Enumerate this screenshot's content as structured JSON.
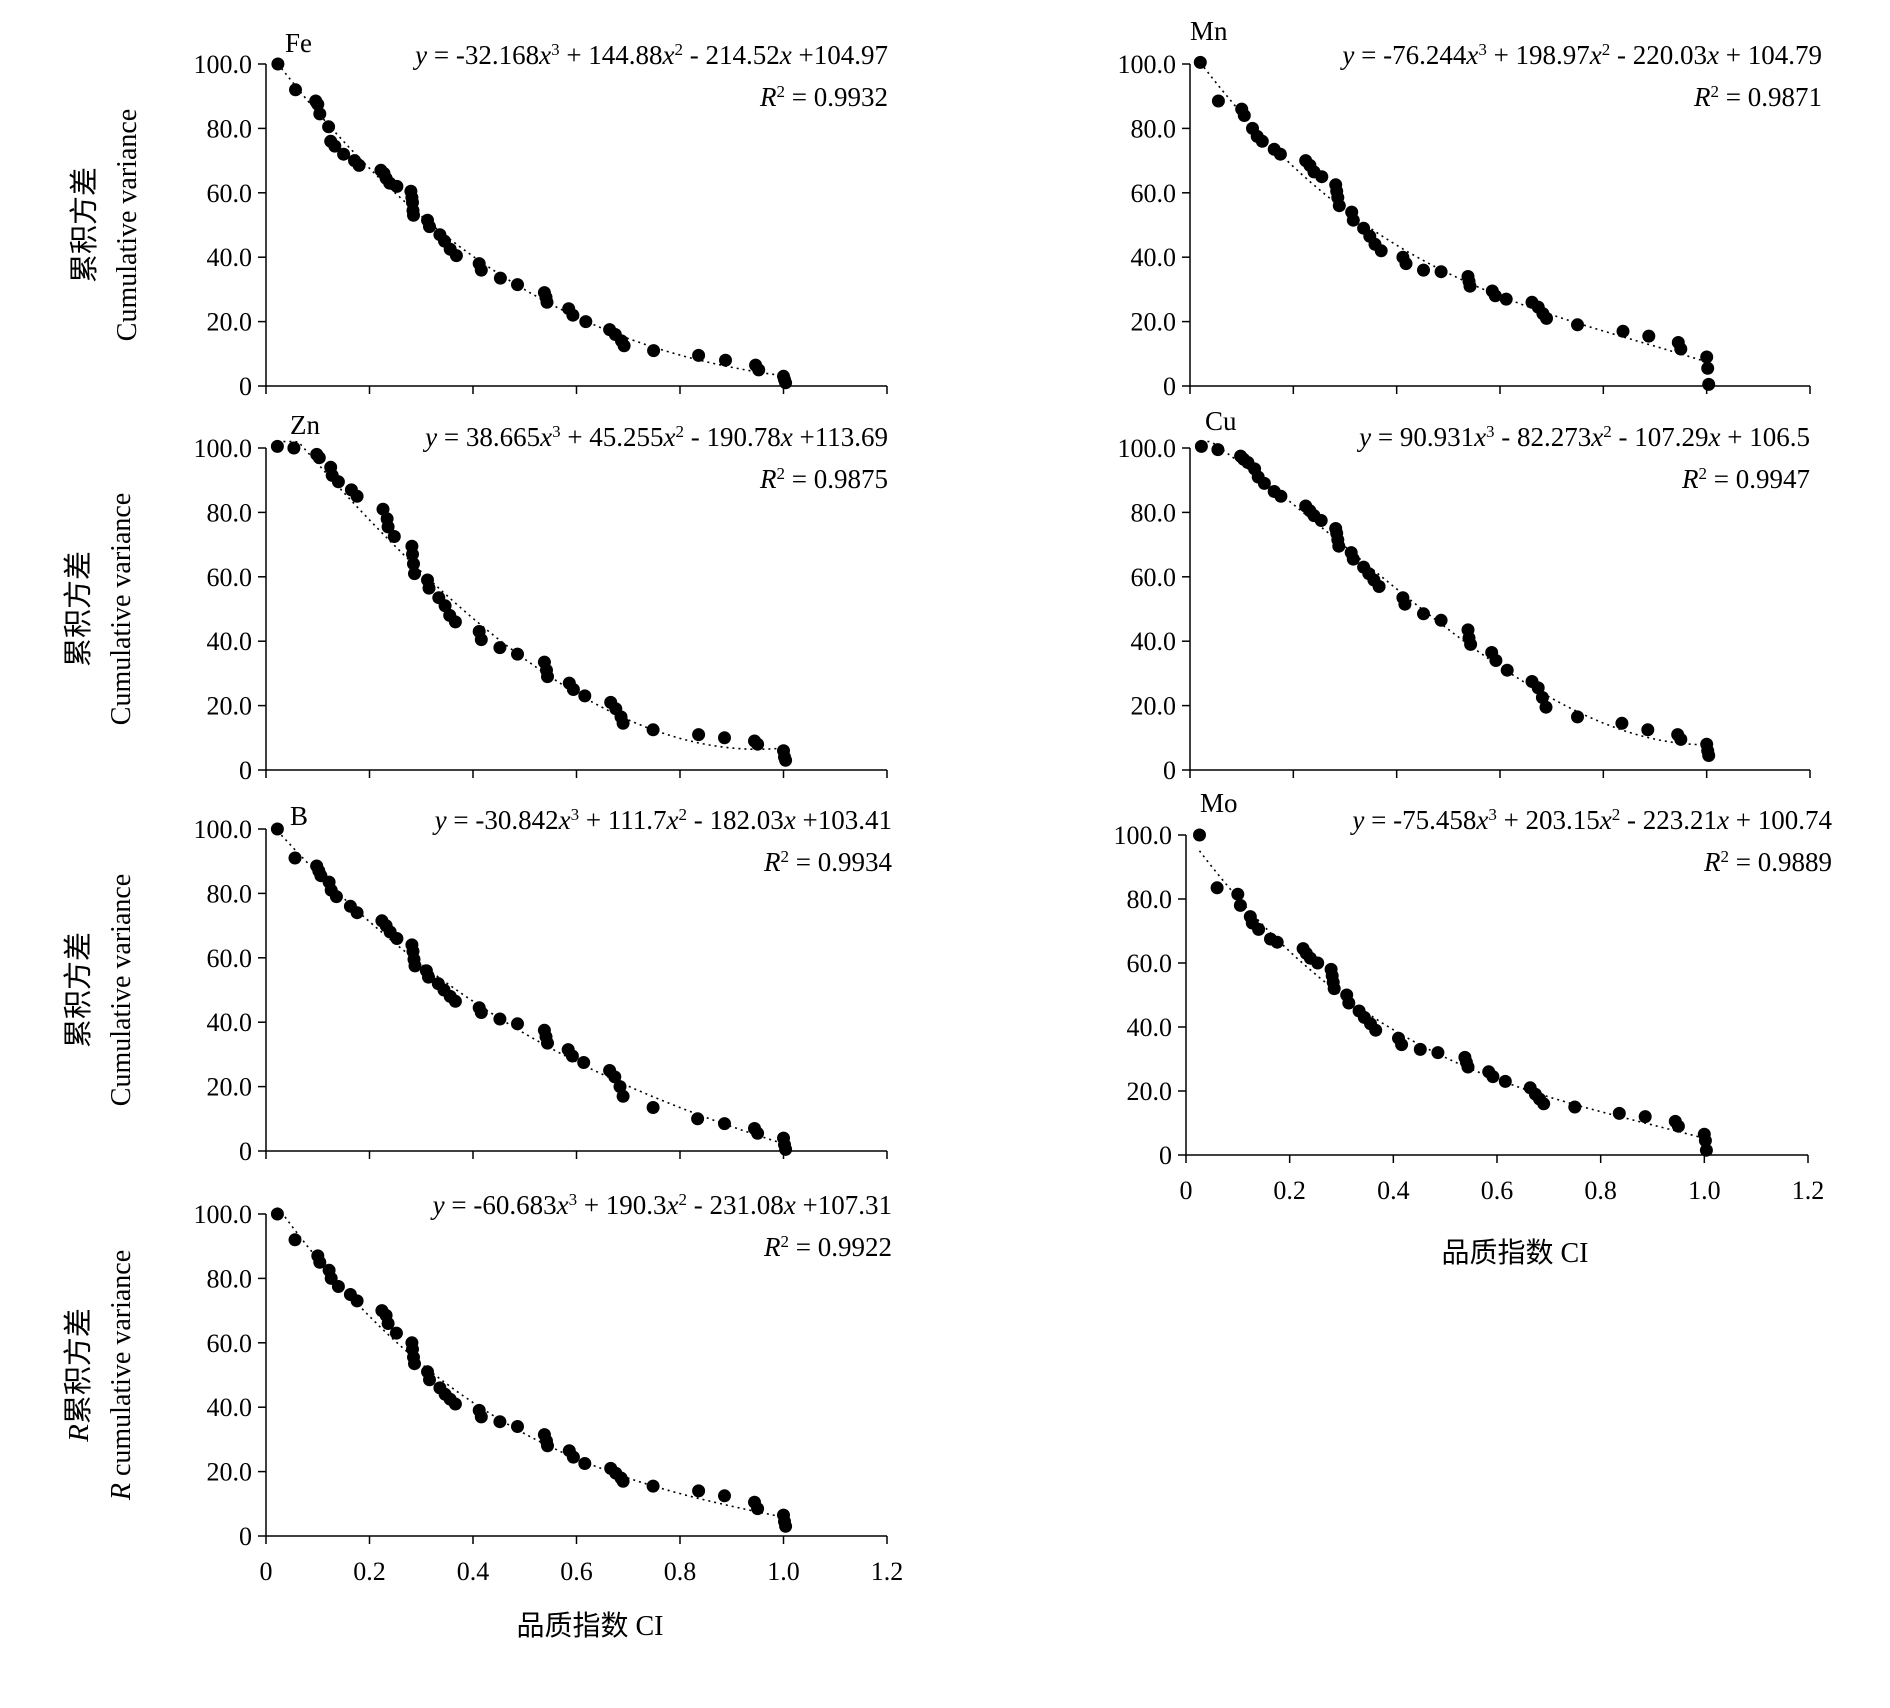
{
  "figure": {
    "y_label_cn": "累积方差",
    "y_label_en": "Cumulative variance",
    "x_label": "品质指数 CI"
  },
  "chart_data": [
    {
      "id": "Fe",
      "type": "scatter",
      "element": "Fe",
      "equation": "y = -32.168x³ + 144.88x² - 214.52x +104.97",
      "r2": "R² = 0.9932",
      "y_label_cn": "累积方差",
      "y_label_en": "Cumulative variance",
      "xlabel": "",
      "xlim": [
        0,
        1.2
      ],
      "ylim": [
        0,
        100
      ],
      "x_ticks": [
        "0",
        "0.2",
        "0.4",
        "0.6",
        "0.8",
        "1.0",
        "1.2"
      ],
      "y_ticks": [
        "0",
        "20.0",
        "40.0",
        "60.0",
        "80.0",
        "100.0"
      ],
      "show_x_tick_labels": false,
      "fit": [
        -32.168,
        144.88,
        -214.52,
        104.97
      ],
      "points": {
        "x": [
          0.023,
          0.057,
          0.096,
          0.1,
          0.104,
          0.121,
          0.125,
          0.133,
          0.15,
          0.171,
          0.18,
          0.222,
          0.228,
          0.232,
          0.239,
          0.253,
          0.28,
          0.282,
          0.283,
          0.284,
          0.285,
          0.312,
          0.316,
          0.336,
          0.345,
          0.356,
          0.368,
          0.412,
          0.416,
          0.453,
          0.486,
          0.538,
          0.541,
          0.543,
          0.585,
          0.593,
          0.618,
          0.664,
          0.675,
          0.687,
          0.692,
          0.749,
          0.836,
          0.888,
          0.946,
          0.952,
          1.0,
          1.002,
          1.004
        ],
        "y": [
          100.0,
          92.0,
          88.5,
          87.5,
          84.5,
          80.5,
          76.0,
          74.5,
          72.0,
          70.0,
          68.5,
          67.0,
          66.0,
          64.5,
          63.0,
          62.0,
          60.5,
          58.5,
          57.0,
          54.5,
          53.0,
          51.5,
          49.5,
          47.0,
          45.0,
          42.5,
          40.5,
          38.0,
          36.0,
          33.5,
          31.5,
          29.0,
          27.5,
          26.0,
          24.0,
          22.0,
          20.0,
          17.5,
          16.0,
          14.0,
          12.5,
          11.0,
          9.5,
          8.0,
          6.5,
          5.0,
          3.0,
          2.0,
          1.0
        ]
      }
    },
    {
      "id": "Mn",
      "type": "scatter",
      "element": "Mn",
      "equation": "y = -76.244x³ + 198.97x² - 220.03x + 104.79",
      "r2": "R² = 0.9871",
      "y_label_cn": "",
      "y_label_en": "",
      "xlabel": "",
      "xlim": [
        0,
        1.2
      ],
      "ylim": [
        0,
        100
      ],
      "x_ticks": [
        "0",
        "0.2",
        "0.4",
        "0.6",
        "0.8",
        "1.0",
        "1.2"
      ],
      "y_ticks": [
        "0",
        "20.0",
        "40.0",
        "60.0",
        "80.0",
        "100.0"
      ],
      "show_x_tick_labels": false,
      "fit": [
        -76.244,
        198.97,
        -220.03,
        104.79
      ],
      "points": {
        "x": [
          0.02,
          0.055,
          0.1,
          0.105,
          0.121,
          0.13,
          0.14,
          0.163,
          0.175,
          0.224,
          0.232,
          0.24,
          0.255,
          0.282,
          0.284,
          0.286,
          0.289,
          0.313,
          0.316,
          0.336,
          0.348,
          0.358,
          0.37,
          0.412,
          0.418,
          0.452,
          0.486,
          0.538,
          0.54,
          0.542,
          0.585,
          0.591,
          0.612,
          0.662,
          0.674,
          0.683,
          0.69,
          0.75,
          0.838,
          0.888,
          0.945,
          0.95,
          1.0,
          1.002,
          1.004
        ],
        "y": [
          100.5,
          88.5,
          86.0,
          84.0,
          80.0,
          77.5,
          76.0,
          73.5,
          72.0,
          70.0,
          68.5,
          66.5,
          65.0,
          62.5,
          60.5,
          58.5,
          56.0,
          54.0,
          51.5,
          49.0,
          46.5,
          44.0,
          42.0,
          40.0,
          38.0,
          36.0,
          35.5,
          34.0,
          32.5,
          31.0,
          29.5,
          28.0,
          27.0,
          26.0,
          24.5,
          22.5,
          21.0,
          19.0,
          17.0,
          15.5,
          13.5,
          11.5,
          9.0,
          5.5,
          0.5
        ]
      }
    },
    {
      "id": "Zn",
      "type": "scatter",
      "element": "Zn",
      "equation": "y = 38.665x³ + 45.255x² - 190.78x +113.69",
      "r2": "R² = 0.9875",
      "y_label_cn": "累积方差",
      "y_label_en": "Cumulative variance",
      "xlabel": "",
      "xlim": [
        0,
        1.2
      ],
      "ylim": [
        0,
        100
      ],
      "x_ticks": [
        "0",
        "0.2",
        "0.4",
        "0.6",
        "0.8",
        "1.0",
        "1.2"
      ],
      "y_ticks": [
        "0",
        "20.0",
        "40.0",
        "60.0",
        "80.0",
        "100.0"
      ],
      "show_x_tick_labels": false,
      "fit": [
        38.665,
        45.255,
        -190.78,
        113.69
      ],
      "points": {
        "x": [
          0.022,
          0.054,
          0.098,
          0.103,
          0.125,
          0.128,
          0.14,
          0.165,
          0.176,
          0.226,
          0.234,
          0.236,
          0.248,
          0.282,
          0.283,
          0.285,
          0.287,
          0.312,
          0.315,
          0.334,
          0.346,
          0.355,
          0.366,
          0.412,
          0.416,
          0.452,
          0.486,
          0.538,
          0.542,
          0.544,
          0.586,
          0.594,
          0.616,
          0.666,
          0.676,
          0.686,
          0.69,
          0.748,
          0.836,
          0.886,
          0.944,
          0.95,
          1.0,
          1.002,
          1.004
        ],
        "y": [
          100.5,
          100.0,
          98.0,
          97.0,
          94.0,
          91.5,
          89.5,
          87.0,
          85.0,
          81.0,
          78.0,
          75.5,
          72.5,
          69.5,
          67.0,
          64.0,
          61.0,
          59.0,
          56.5,
          53.5,
          51.0,
          48.0,
          46.0,
          43.0,
          40.5,
          38.0,
          36.0,
          33.5,
          31.0,
          29.0,
          27.0,
          25.0,
          23.0,
          21.0,
          19.0,
          16.5,
          14.5,
          12.5,
          11.0,
          10.0,
          9.0,
          8.0,
          6.0,
          4.0,
          3.0
        ]
      }
    },
    {
      "id": "Cu",
      "type": "scatter",
      "element": "Cu",
      "equation": "y = 90.931x³ - 82.273x² - 107.29x + 106.5",
      "r2": "R² = 0.9947",
      "y_label_cn": "",
      "y_label_en": "",
      "xlabel": "",
      "xlim": [
        0,
        1.2
      ],
      "ylim": [
        0,
        100
      ],
      "x_ticks": [
        "0",
        "0.2",
        "0.4",
        "0.6",
        "0.8",
        "1.0",
        "1.2"
      ],
      "y_ticks": [
        "0",
        "20.0",
        "40.0",
        "60.0",
        "80.0",
        "100.0"
      ],
      "show_x_tick_labels": false,
      "fit": [
        90.931,
        -82.273,
        -107.29,
        106.5
      ],
      "points": {
        "x": [
          0.022,
          0.054,
          0.098,
          0.104,
          0.112,
          0.125,
          0.132,
          0.144,
          0.163,
          0.176,
          0.224,
          0.232,
          0.24,
          0.254,
          0.282,
          0.284,
          0.286,
          0.288,
          0.312,
          0.316,
          0.336,
          0.346,
          0.356,
          0.366,
          0.412,
          0.416,
          0.452,
          0.486,
          0.538,
          0.54,
          0.543,
          0.584,
          0.592,
          0.614,
          0.662,
          0.674,
          0.682,
          0.689,
          0.75,
          0.836,
          0.886,
          0.944,
          0.95,
          1.0,
          1.002,
          1.004
        ],
        "y": [
          100.5,
          99.5,
          97.5,
          96.5,
          95.5,
          93.5,
          91.0,
          89.0,
          86.5,
          85.0,
          82.0,
          80.5,
          79.0,
          77.5,
          75.0,
          73.5,
          71.5,
          69.5,
          67.5,
          65.5,
          63.0,
          61.0,
          59.0,
          57.0,
          53.5,
          51.5,
          48.5,
          46.5,
          43.5,
          41.0,
          39.0,
          36.5,
          34.0,
          31.0,
          27.5,
          25.5,
          22.5,
          19.5,
          16.5,
          14.5,
          12.5,
          11.0,
          9.5,
          8.0,
          6.0,
          4.5
        ]
      }
    },
    {
      "id": "B",
      "type": "scatter",
      "element": "B",
      "equation": "y = -30.842x³ + 111.7x² - 182.03x +103.41",
      "r2": "R² = 0.9934",
      "y_label_cn": "累积方差",
      "y_label_en": "Cumulative variance",
      "xlabel": "",
      "xlim": [
        0,
        1.2
      ],
      "ylim": [
        0,
        100
      ],
      "x_ticks": [
        "0",
        "0.2",
        "0.4",
        "0.6",
        "0.8",
        "1.0",
        "1.2"
      ],
      "y_ticks": [
        "0",
        "20.0",
        "40.0",
        "60.0",
        "80.0",
        "100.0"
      ],
      "show_x_tick_labels": false,
      "fit": [
        -30.842,
        111.7,
        -182.03,
        103.41
      ],
      "points": {
        "x": [
          0.022,
          0.056,
          0.098,
          0.102,
          0.106,
          0.122,
          0.126,
          0.136,
          0.163,
          0.176,
          0.224,
          0.232,
          0.24,
          0.253,
          0.282,
          0.284,
          0.286,
          0.288,
          0.31,
          0.314,
          0.333,
          0.344,
          0.356,
          0.366,
          0.412,
          0.416,
          0.452,
          0.486,
          0.538,
          0.541,
          0.544,
          0.584,
          0.592,
          0.614,
          0.664,
          0.674,
          0.684,
          0.69,
          0.748,
          0.834,
          0.886,
          0.944,
          0.95,
          1.0,
          1.002,
          1.004
        ],
        "y": [
          100.0,
          91.0,
          88.5,
          87.0,
          85.5,
          83.5,
          81.0,
          79.0,
          76.0,
          74.0,
          71.5,
          70.0,
          68.0,
          66.0,
          64.0,
          62.0,
          59.5,
          57.5,
          56.0,
          54.0,
          52.0,
          50.0,
          48.0,
          46.5,
          44.5,
          43.0,
          41.0,
          39.5,
          37.5,
          35.5,
          33.5,
          31.5,
          29.5,
          27.5,
          25.0,
          23.0,
          20.0,
          17.0,
          13.5,
          10.0,
          8.5,
          7.0,
          5.5,
          4.0,
          2.0,
          0.5
        ]
      }
    },
    {
      "id": "Mo",
      "type": "scatter",
      "element": "Mo",
      "equation": "y = -75.458x³ + 203.15x² - 223.21x + 100.74",
      "r2": "R² = 0.9889",
      "y_label_cn": "",
      "y_label_en": "",
      "xlabel": "品质指数 CI",
      "xlim": [
        0,
        1.2
      ],
      "ylim": [
        0,
        100
      ],
      "x_ticks": [
        "0",
        "0.2",
        "0.4",
        "0.6",
        "0.8",
        "1.0",
        "1.2"
      ],
      "y_ticks": [
        "0",
        "20.0",
        "40.0",
        "60.0",
        "80.0",
        "100.0"
      ],
      "show_x_tick_labels": true,
      "fit": [
        -75.458,
        203.15,
        -223.21,
        100.74
      ],
      "points": {
        "x": [
          0.026,
          0.06,
          0.1,
          0.105,
          0.124,
          0.128,
          0.14,
          0.163,
          0.176,
          0.226,
          0.232,
          0.24,
          0.254,
          0.28,
          0.282,
          0.284,
          0.286,
          0.31,
          0.314,
          0.334,
          0.344,
          0.356,
          0.366,
          0.41,
          0.416,
          0.452,
          0.486,
          0.538,
          0.541,
          0.544,
          0.584,
          0.592,
          0.616,
          0.664,
          0.674,
          0.682,
          0.69,
          0.75,
          0.836,
          0.886,
          0.944,
          0.95,
          1.0,
          1.002,
          1.004
        ],
        "y": [
          100.0,
          83.5,
          81.5,
          78.0,
          74.5,
          72.5,
          70.5,
          67.5,
          66.5,
          64.5,
          63.0,
          61.5,
          60.0,
          58.0,
          56.0,
          54.0,
          52.0,
          50.0,
          47.5,
          45.0,
          43.0,
          41.0,
          39.0,
          36.5,
          34.5,
          33.0,
          32.0,
          30.5,
          29.0,
          27.5,
          26.0,
          24.5,
          23.0,
          21.0,
          19.0,
          17.5,
          16.0,
          15.0,
          13.0,
          12.0,
          10.5,
          9.0,
          6.5,
          4.5,
          1.5
        ]
      }
    },
    {
      "id": "R",
      "type": "scatter",
      "element": "",
      "equation": "y = -60.683x³ + 190.3x² - 231.08x +107.31",
      "r2": "R² = 0.9922",
      "y_label_cn": "R累积方差",
      "y_label_en": "R cumulative variance",
      "xlabel": "品质指数 CI",
      "xlim": [
        0,
        1.2
      ],
      "ylim": [
        0,
        100
      ],
      "x_ticks": [
        "0",
        "0.2",
        "0.4",
        "0.6",
        "0.8",
        "1.0",
        "1.2"
      ],
      "y_ticks": [
        "0",
        "20.0",
        "40.0",
        "60.0",
        "80.0",
        "100.0"
      ],
      "show_x_tick_labels": true,
      "fit": [
        -60.683,
        190.3,
        -231.08,
        107.31
      ],
      "points": {
        "x": [
          0.022,
          0.056,
          0.1,
          0.104,
          0.122,
          0.126,
          0.14,
          0.163,
          0.176,
          0.224,
          0.232,
          0.236,
          0.252,
          0.282,
          0.283,
          0.285,
          0.287,
          0.312,
          0.316,
          0.336,
          0.346,
          0.356,
          0.366,
          0.412,
          0.416,
          0.452,
          0.486,
          0.538,
          0.542,
          0.544,
          0.586,
          0.594,
          0.616,
          0.666,
          0.676,
          0.686,
          0.69,
          0.748,
          0.836,
          0.886,
          0.944,
          0.95,
          1.0,
          1.002,
          1.004
        ],
        "y": [
          100.0,
          92.0,
          87.0,
          85.0,
          82.5,
          80.0,
          77.5,
          75.0,
          73.0,
          70.0,
          68.5,
          66.0,
          63.0,
          60.0,
          58.0,
          55.5,
          53.5,
          51.0,
          48.5,
          46.0,
          44.0,
          42.5,
          41.0,
          39.0,
          37.0,
          35.5,
          34.0,
          31.5,
          29.5,
          28.0,
          26.5,
          24.5,
          22.5,
          21.0,
          19.5,
          18.0,
          17.0,
          15.5,
          14.0,
          12.5,
          10.5,
          8.5,
          6.5,
          4.5,
          3.0
        ]
      }
    }
  ]
}
